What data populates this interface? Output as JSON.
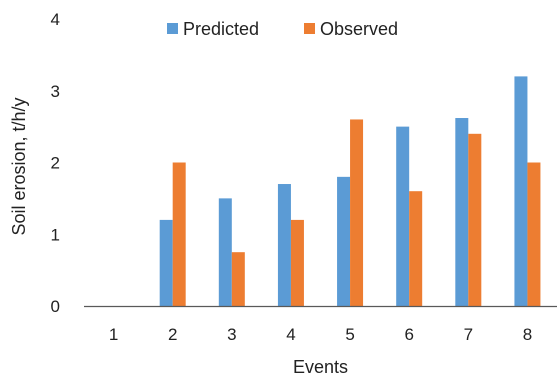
{
  "chart_data": {
    "type": "bar",
    "categories": [
      "1",
      "2",
      "3",
      "4",
      "5",
      "6",
      "7",
      "8"
    ],
    "series": [
      {
        "name": "Predicted",
        "color": "#5B9BD5",
        "values": [
          0,
          1.2,
          1.5,
          1.7,
          1.8,
          2.5,
          2.62,
          3.2
        ]
      },
      {
        "name": "Observed",
        "color": "#ED7D31",
        "values": [
          0,
          2.0,
          0.75,
          1.2,
          2.6,
          1.6,
          2.4,
          2.0
        ]
      }
    ],
    "xlabel": "Events",
    "ylabel": "Soil erosion, t/h/y",
    "ylim": [
      0,
      4
    ],
    "yticks": [
      "0",
      "1",
      "2",
      "3",
      "4"
    ],
    "grid": false,
    "legend_position": "top"
  }
}
